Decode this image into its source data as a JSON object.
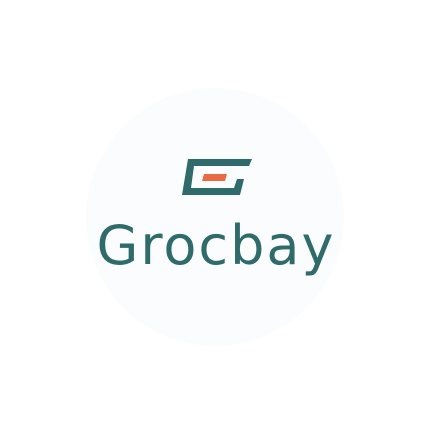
{
  "brand": {
    "name": "Grocbay",
    "logo_icon": "grocbay-logo-icon",
    "colors": {
      "primary": "#2e6b6a",
      "accent": "#e96a44",
      "background": "#ffffff",
      "badge": "#fbfcfd"
    }
  }
}
